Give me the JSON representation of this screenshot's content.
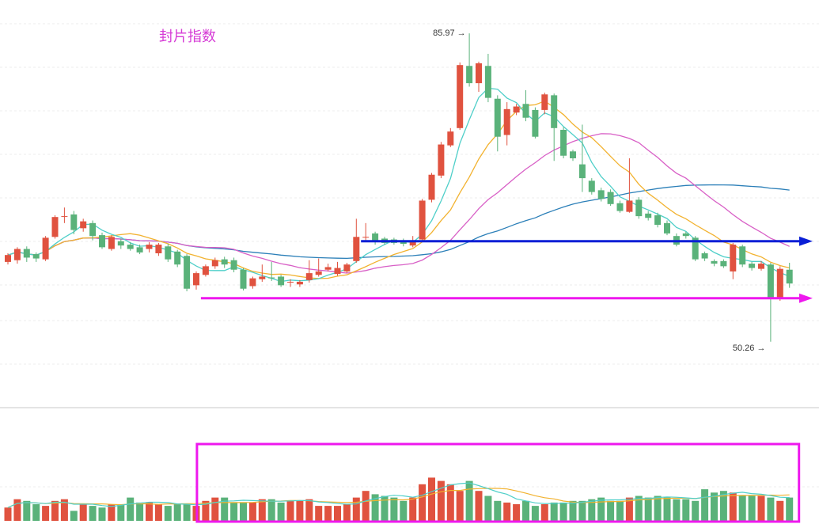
{
  "chart_data": {
    "type": "candlestick",
    "title": "封片指数",
    "price_annotations": {
      "high": "85.97 →",
      "low": "50.26 →"
    },
    "ylim": [
      44,
      88
    ],
    "volume_ylim": [
      0,
      100
    ],
    "colors": {
      "up": "#e0523f",
      "down": "#5ab27a",
      "ma5": "#4fcfc9",
      "ma10": "#f2b22f",
      "ma20": "#d85fc6",
      "ma60": "#2b7fb8",
      "resistance_line": "#0a1fd6",
      "support_line": "#ee18ee",
      "highlight_box": "#ee18ee",
      "title": "#d63cd6"
    },
    "candles": [
      [
        59.5,
        60.3,
        59.2,
        60.5
      ],
      [
        59.7,
        61.0,
        59.3,
        61.2
      ],
      [
        61.0,
        60.0,
        59.5,
        61.3
      ],
      [
        60.4,
        59.9,
        59.5,
        60.6
      ],
      [
        59.8,
        62.3,
        59.6,
        62.5
      ],
      [
        62.4,
        64.7,
        62.2,
        64.9
      ],
      [
        64.8,
        64.8,
        64.0,
        65.8
      ],
      [
        65.0,
        63.2,
        62.7,
        65.4
      ],
      [
        63.4,
        64.2,
        63.0,
        64.5
      ],
      [
        64.0,
        62.5,
        62.0,
        64.3
      ],
      [
        62.6,
        61.2,
        61.0,
        62.9
      ],
      [
        61.0,
        62.4,
        60.8,
        62.6
      ],
      [
        61.9,
        61.4,
        61.0,
        62.2
      ],
      [
        61.5,
        61.0,
        60.8,
        61.8
      ],
      [
        61.2,
        60.6,
        60.4,
        61.5
      ],
      [
        61.0,
        61.5,
        60.6,
        61.8
      ],
      [
        60.5,
        61.5,
        60.2,
        61.7
      ],
      [
        61.3,
        59.8,
        59.5,
        61.6
      ],
      [
        60.7,
        59.2,
        58.9,
        60.9
      ],
      [
        60.2,
        56.4,
        56.1,
        60.4
      ],
      [
        56.8,
        58.2,
        56.3,
        58.4
      ],
      [
        58.0,
        59.0,
        57.8,
        59.2
      ],
      [
        59.0,
        59.7,
        58.7,
        60.0
      ],
      [
        59.8,
        59.2,
        58.8,
        60.1
      ],
      [
        59.7,
        58.6,
        58.3,
        60.0
      ],
      [
        58.6,
        56.4,
        56.2,
        58.8
      ],
      [
        56.7,
        57.6,
        56.4,
        57.8
      ],
      [
        57.5,
        57.8,
        57.2,
        59.2
      ],
      [
        57.7,
        57.6,
        57.3,
        59.5
      ],
      [
        57.8,
        56.8,
        56.6,
        58.0
      ],
      [
        57.2,
        57.2,
        56.6,
        57.5
      ],
      [
        56.9,
        57.2,
        56.6,
        57.4
      ],
      [
        57.4,
        58.2,
        57.1,
        59.7
      ],
      [
        58.0,
        58.4,
        57.8,
        59.9
      ],
      [
        58.6,
        58.9,
        58.4,
        59.3
      ],
      [
        58.1,
        58.8,
        57.9,
        59.5
      ],
      [
        58.4,
        59.2,
        58.2,
        59.4
      ],
      [
        59.6,
        62.4,
        59.4,
        64.5
      ],
      [
        62.4,
        62.4,
        61.8,
        64.0
      ],
      [
        62.8,
        61.9,
        61.5,
        63.0
      ],
      [
        62.2,
        61.7,
        61.5,
        62.4
      ],
      [
        62.1,
        61.7,
        61.5,
        62.3
      ],
      [
        61.8,
        61.6,
        61.3,
        62.2
      ],
      [
        61.4,
        61.9,
        61.2,
        62.5
      ],
      [
        62.1,
        66.6,
        61.8,
        66.8
      ],
      [
        66.7,
        69.6,
        66.4,
        69.8
      ],
      [
        69.5,
        73.1,
        69.2,
        73.4
      ],
      [
        73.0,
        74.6,
        72.8,
        75.0
      ],
      [
        75.0,
        82.3,
        74.8,
        82.6
      ],
      [
        82.2,
        80.2,
        79.8,
        85.97
      ],
      [
        80.2,
        82.5,
        79.2,
        82.7
      ],
      [
        82.2,
        78.5,
        78.0,
        83.6
      ],
      [
        78.4,
        74.0,
        72.3,
        78.8
      ],
      [
        74.2,
        77.2,
        73.0,
        78.0
      ],
      [
        76.8,
        77.5,
        76.5,
        77.8
      ],
      [
        77.8,
        76.2,
        75.8,
        79.4
      ],
      [
        77.1,
        74.0,
        73.8,
        77.4
      ],
      [
        77.1,
        78.9,
        76.6,
        79.1
      ],
      [
        78.8,
        75.0,
        71.2,
        79.0
      ],
      [
        74.8,
        71.8,
        71.5,
        75.1
      ],
      [
        72.3,
        71.5,
        71.2,
        72.5
      ],
      [
        70.8,
        69.2,
        67.6,
        75.4
      ],
      [
        68.9,
        67.6,
        67.3,
        69.2
      ],
      [
        67.8,
        66.8,
        66.5,
        68.1
      ],
      [
        67.6,
        66.2,
        66.0,
        67.9
      ],
      [
        66.3,
        65.4,
        65.2,
        66.6
      ],
      [
        65.3,
        66.6,
        65.2,
        71.5
      ],
      [
        66.7,
        64.8,
        64.5,
        67.0
      ],
      [
        65.1,
        64.6,
        64.3,
        65.4
      ],
      [
        64.9,
        63.8,
        63.5,
        65.2
      ],
      [
        64.0,
        62.8,
        62.6,
        64.3
      ],
      [
        62.5,
        61.5,
        61.3,
        62.8
      ],
      [
        62.8,
        62.5,
        62.2,
        63.0
      ],
      [
        62.3,
        59.8,
        59.6,
        62.5
      ],
      [
        60.5,
        59.9,
        59.6,
        60.7
      ],
      [
        59.6,
        59.3,
        59.0,
        59.8
      ],
      [
        59.6,
        59.0,
        58.8,
        59.8
      ],
      [
        58.4,
        61.5,
        57.5,
        61.7
      ],
      [
        61.3,
        59.2,
        58.9,
        61.5
      ],
      [
        59.3,
        58.8,
        58.5,
        59.5
      ],
      [
        58.7,
        59.3,
        58.5,
        59.6
      ],
      [
        59.2,
        55.3,
        50.26,
        59.4
      ],
      [
        55.4,
        58.7,
        55.0,
        59.0
      ],
      [
        58.6,
        57.0,
        56.5,
        59.4
      ]
    ],
    "volume": [
      8,
      13,
      12,
      10,
      9,
      12,
      13,
      6,
      10,
      9,
      8,
      10,
      10,
      14,
      11,
      11,
      10,
      9,
      10,
      10,
      9,
      12,
      14,
      14,
      11,
      11,
      11,
      13,
      13,
      11,
      12,
      12,
      13,
      9,
      9,
      9,
      10,
      14,
      18,
      16,
      15,
      14,
      12,
      14,
      22,
      26,
      24,
      22,
      18,
      24,
      18,
      15,
      12,
      11,
      10,
      12,
      9,
      10,
      11,
      11,
      12,
      12,
      13,
      14,
      12,
      12,
      14,
      15,
      14,
      15,
      14,
      13,
      13,
      12,
      19,
      17,
      18,
      17,
      15,
      15,
      15,
      14,
      12,
      14
    ],
    "lines": [
      {
        "type": "horizontal",
        "value": 61.9,
        "from_index": 38,
        "arrow": true,
        "color_key": "resistance_line"
      },
      {
        "type": "horizontal",
        "value": 55.3,
        "from_index": 21,
        "arrow": true,
        "color_key": "support_line"
      }
    ],
    "highlight": {
      "from_index": 21,
      "to_index": 83
    }
  }
}
